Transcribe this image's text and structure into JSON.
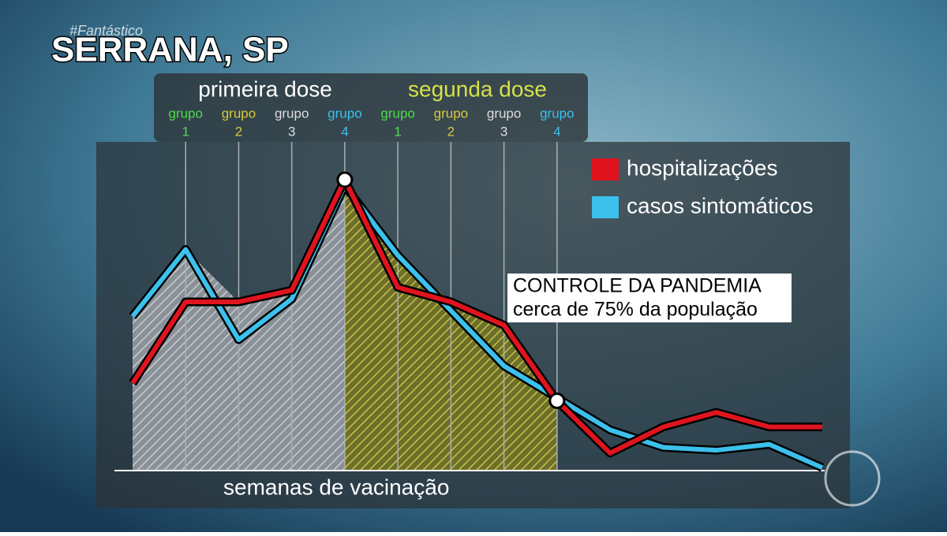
{
  "watermark": "#Fantástico",
  "chart_data": {
    "type": "line",
    "title": "SERRANA, SP",
    "x_label": "semanas de vacinação",
    "phases": [
      {
        "label": "primeira dose",
        "color": "#ffffff"
      },
      {
        "label": "segunda dose",
        "color": "#d8e04a"
      }
    ],
    "category_prefix": "grupo",
    "categories": [
      null,
      "1",
      "2",
      "3",
      "4",
      "1",
      "2",
      "3",
      "4",
      null,
      null,
      null,
      null,
      null
    ],
    "category_colors": [
      null,
      "#4ddc4d",
      "#d8c83a",
      "#dddddd",
      "#3cc0ec",
      "#4ddc4d",
      "#d8c83a",
      "#dddddd",
      "#3cc0ec",
      null,
      null,
      null,
      null,
      null
    ],
    "series": [
      {
        "name": "hospitalizações",
        "color": "#e0141e",
        "values": [
          30,
          58,
          58,
          62,
          100,
          63,
          58,
          50,
          24,
          6,
          15,
          20,
          15,
          15
        ]
      },
      {
        "name": "casos sintomáticos",
        "color": "#3cc0ec",
        "values": [
          53,
          76,
          45,
          59,
          98,
          74,
          55,
          36,
          25,
          14,
          8,
          7,
          9,
          1
        ]
      }
    ],
    "ylim": [
      0,
      100
    ],
    "annotation": {
      "title": "CONTROLE DA PANDEMIA",
      "text": "cerca de 75% da população"
    },
    "legend": "top-right"
  }
}
